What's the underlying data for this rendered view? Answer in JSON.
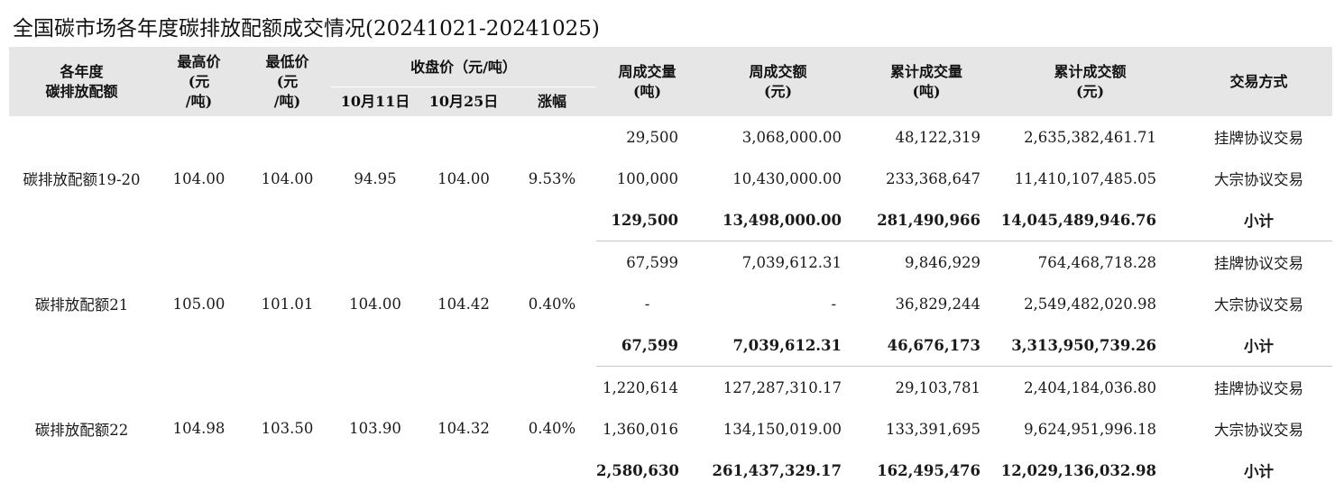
{
  "title": "全国碳市场各年度碳排放配额成交情况(20241021-20241025)",
  "header": {
    "category": "各年度\n碳排放配额",
    "high": "最高价\n(元\n/吨)",
    "low": "最低价\n(元\n/吨)",
    "close_group": "收盘价（元/吨）",
    "close_oct11": "10月11日",
    "close_oct25": "10月25日",
    "change": "涨幅",
    "week_volume": "周成交量\n(吨)",
    "week_amount": "周成交额\n(元)",
    "cum_volume": "累计成交量\n(吨)",
    "cum_amount": "累计成交额\n(元)",
    "mode": "交易方式"
  },
  "groups": [
    {
      "category": "碳排放配额19-20",
      "high": "104.00",
      "low": "104.00",
      "close_oct11": "94.95",
      "close_oct25": "104.00",
      "change": "9.53%",
      "rows": [
        {
          "week_volume": "29,500",
          "week_amount": "3,068,000.00",
          "cum_volume": "48,122,319",
          "cum_amount": "2,635,382,461.71",
          "mode": "挂牌协议交易"
        },
        {
          "week_volume": "100,000",
          "week_amount": "10,430,000.00",
          "cum_volume": "233,368,647",
          "cum_amount": "11,410,107,485.05",
          "mode": "大宗协议交易"
        },
        {
          "week_volume": "129,500",
          "week_amount": "13,498,000.00",
          "cum_volume": "281,490,966",
          "cum_amount": "14,045,489,946.76",
          "mode": "小计"
        }
      ]
    },
    {
      "category": "碳排放配额21",
      "high": "105.00",
      "low": "101.01",
      "close_oct11": "104.00",
      "close_oct25": "104.42",
      "change": "0.40%",
      "rows": [
        {
          "week_volume": "67,599",
          "week_amount": "7,039,612.31",
          "cum_volume": "9,846,929",
          "cum_amount": "764,468,718.28",
          "mode": "挂牌协议交易"
        },
        {
          "week_volume": "-",
          "week_amount": "-",
          "cum_volume": "36,829,244",
          "cum_amount": "2,549,482,020.98",
          "mode": "大宗协议交易"
        },
        {
          "week_volume": "67,599",
          "week_amount": "7,039,612.31",
          "cum_volume": "46,676,173",
          "cum_amount": "3,313,950,739.26",
          "mode": "小计"
        }
      ]
    },
    {
      "category": "碳排放配额22",
      "high": "104.98",
      "low": "103.50",
      "close_oct11": "103.90",
      "close_oct25": "104.32",
      "change": "0.40%",
      "rows": [
        {
          "week_volume": "1,220,614",
          "week_amount": "127,287,310.17",
          "cum_volume": "29,103,781",
          "cum_amount": "2,404,184,036.80",
          "mode": "挂牌协议交易"
        },
        {
          "week_volume": "1,360,016",
          "week_amount": "134,150,019.00",
          "cum_volume": "133,391,695",
          "cum_amount": "9,624,951,996.18",
          "mode": "大宗协议交易"
        },
        {
          "week_volume": "2,580,630",
          "week_amount": "261,437,329.17",
          "cum_volume": "162,495,476",
          "cum_amount": "12,029,136,032.98",
          "mode": "小计"
        }
      ]
    }
  ]
}
